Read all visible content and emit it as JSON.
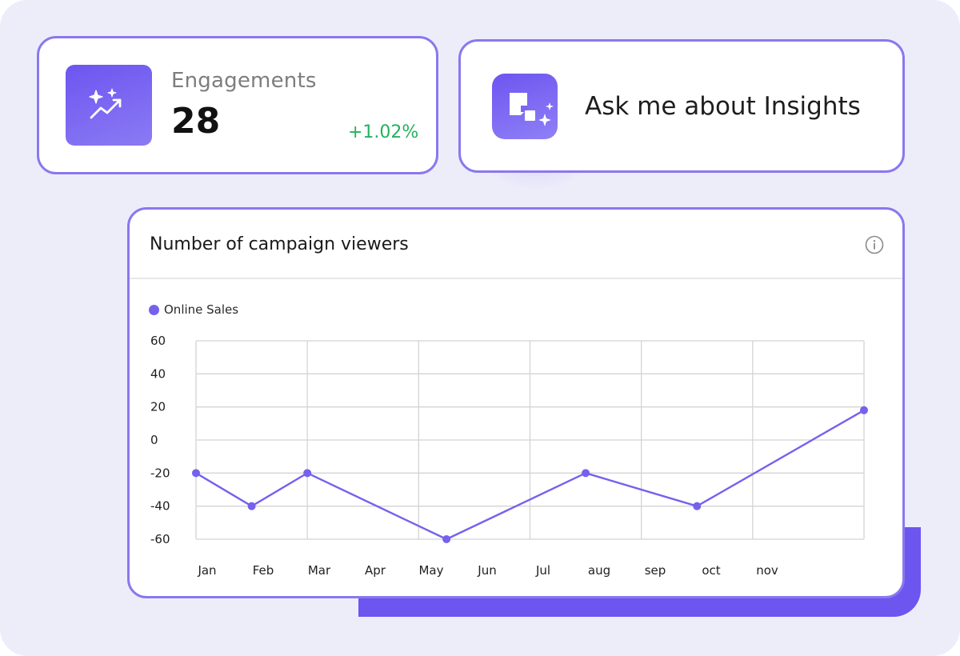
{
  "engagements": {
    "label": "Engagements",
    "value": "28",
    "change": "+1.02%",
    "icon": "sparkle-trend-icon"
  },
  "assistant": {
    "prompt": "Ask me about Insights",
    "icon": "ai-assistant-icon"
  },
  "chart_card": {
    "title": "Number of campaign viewers",
    "info_icon": "info-icon"
  },
  "colors": {
    "accent": "#6d55f0",
    "line": "#7462ee",
    "positive": "#25b25c",
    "border": "#8a78ee"
  },
  "chart_data": {
    "type": "line",
    "categories": [
      "Jan",
      "Feb",
      "Mar",
      "Apr",
      "May",
      "Jun",
      "Jul",
      "aug",
      "sep",
      "oct",
      "nov"
    ],
    "series": [
      {
        "name": "Online Sales",
        "points": [
          {
            "x": 0,
            "y": -20
          },
          {
            "x": 1,
            "y": -40
          },
          {
            "x": 2,
            "y": -20
          },
          {
            "x": 4.5,
            "y": -60
          },
          {
            "x": 7,
            "y": -20
          },
          {
            "x": 9,
            "y": -40
          },
          {
            "x": 12,
            "y": 18
          }
        ]
      }
    ],
    "yticks": [
      60,
      40,
      20,
      0,
      -20,
      -40,
      -60
    ],
    "ylim": [
      -60,
      60
    ],
    "xlim": [
      0,
      12
    ],
    "grid": true,
    "legend": "top-left"
  }
}
